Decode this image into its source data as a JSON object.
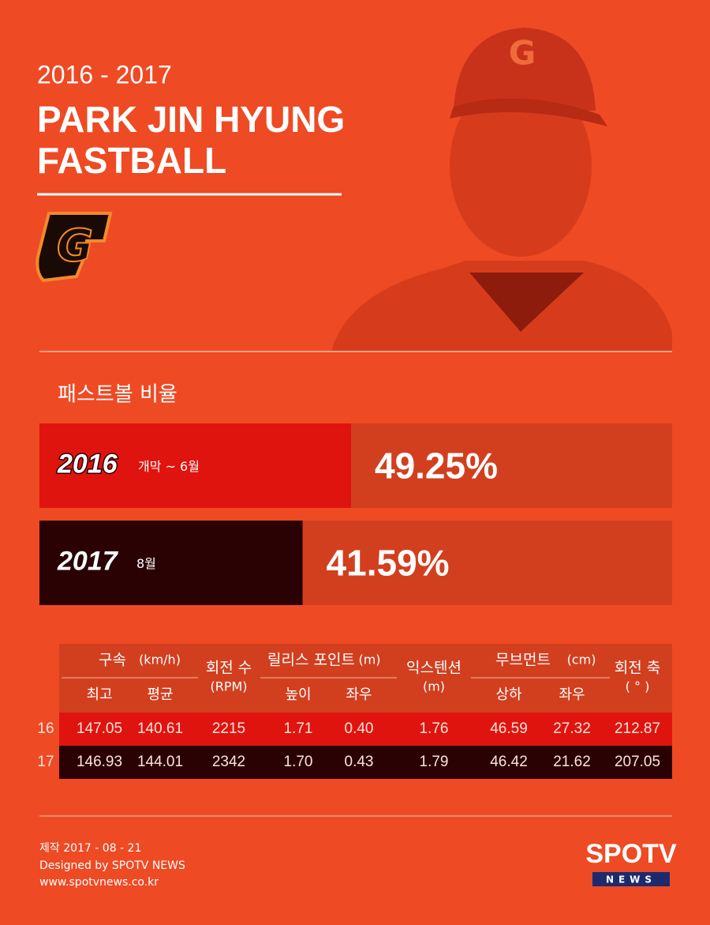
{
  "header": {
    "season": "2016 - 2017",
    "title_line1": "PARK JIN HYUNG",
    "title_line2": "FASTBALL"
  },
  "chart_data": {
    "type": "bar",
    "title": "패스트볼 비율",
    "categories": [
      "2016",
      "2017"
    ],
    "periods": [
      "개막 ~ 6월",
      "8월"
    ],
    "values": [
      49.25,
      41.59
    ],
    "value_labels": [
      "49.25%",
      "41.59%"
    ],
    "colors": [
      "#e0140e",
      "#2b0204"
    ],
    "track_color": "#d23f1f",
    "xlim": [
      0,
      100
    ]
  },
  "table": {
    "groups": [
      {
        "label": "구속",
        "unit": "(km/h)",
        "sub": [
          "최고",
          "평균"
        ]
      },
      {
        "label": "회전 수",
        "unit": "(RPM)",
        "sub": []
      },
      {
        "label": "릴리스 포인트",
        "unit": "(m)",
        "sub": [
          "높이",
          "좌우"
        ]
      },
      {
        "label": "익스텐션",
        "unit": "(m)",
        "sub": []
      },
      {
        "label": "무브먼트",
        "unit": "(cm)",
        "sub": [
          "상하",
          "좌우"
        ]
      },
      {
        "label": "회전 축",
        "unit": "( ° )",
        "sub": []
      }
    ],
    "rows": [
      {
        "label": "16",
        "cells": [
          "147.05",
          "140.61",
          "2215",
          "1.71",
          "0.40",
          "1.76",
          "46.59",
          "27.32",
          "212.87"
        ]
      },
      {
        "label": "17",
        "cells": [
          "146.93",
          "144.01",
          "2342",
          "1.70",
          "0.43",
          "1.79",
          "46.42",
          "21.62",
          "207.05"
        ]
      }
    ]
  },
  "footer": {
    "made": "제작 2017 - 08 - 21",
    "designed": "Designed by SPOTV NEWS",
    "url": "www.spotvnews.co.kr",
    "logo": "SPOTV",
    "logo_sub": "NEWS"
  }
}
